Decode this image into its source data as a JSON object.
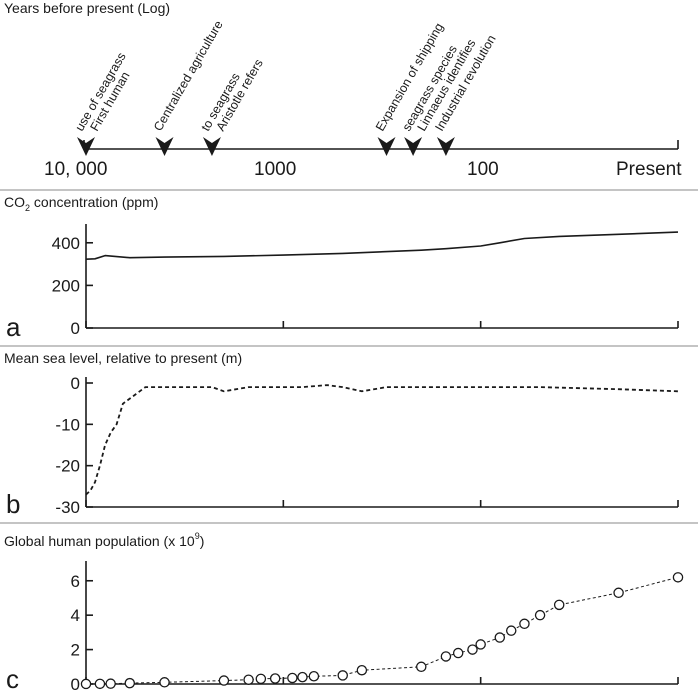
{
  "timeline": {
    "title": "Years before present (Log)",
    "tick_labels": [
      "10, 000",
      "1000",
      "100",
      "Present"
    ],
    "events": [
      {
        "lines": [
          "First human",
          "use of seagrass"
        ],
        "year": 10000
      },
      {
        "lines": [
          "Centralized agriculture"
        ],
        "year": 4000
      },
      {
        "lines": [
          "Aristotle refers",
          "to seagrass"
        ],
        "year": 2300
      },
      {
        "lines": [
          "Expansion of shipping"
        ],
        "year": 300
      },
      {
        "lines": [
          "Linnaeus identifies",
          "seagrass species"
        ],
        "year": 220
      },
      {
        "lines": [
          "Industrial revolution"
        ],
        "year": 150
      }
    ]
  },
  "chart_data": [
    {
      "type": "line",
      "panel": "a",
      "title_main": "CO",
      "title_sub": "2",
      "title_rest": " concentration (ppm)",
      "ylim": [
        0,
        460
      ],
      "yticks": [
        "0",
        "200",
        "400"
      ],
      "ytick_values": [
        0,
        200,
        400
      ],
      "x_scale": "log years before present",
      "x": [
        10000,
        9000,
        8000,
        6000,
        4000,
        2000,
        1000,
        500,
        200,
        150,
        100,
        80,
        60,
        40,
        20,
        10
      ],
      "y": [
        323,
        325,
        340,
        330,
        333,
        336,
        342,
        350,
        365,
        372,
        385,
        400,
        420,
        430,
        440,
        450
      ]
    },
    {
      "type": "line",
      "panel": "b",
      "title": "Mean sea level, relative to present (m)",
      "ylim": [
        -30,
        0
      ],
      "yticks": [
        "0",
        "-10",
        "-20",
        "-30"
      ],
      "ytick_values": [
        0,
        -10,
        -20,
        -30
      ],
      "x_scale": "log years before present",
      "x": [
        10000,
        9500,
        9000,
        8500,
        8000,
        7500,
        7000,
        6500,
        5000,
        4000,
        3000,
        2300,
        2000,
        1500,
        1000,
        800,
        600,
        500,
        400,
        300,
        200,
        100,
        50,
        20,
        10
      ],
      "y": [
        -27,
        -26,
        -24,
        -20,
        -15,
        -12,
        -10,
        -5,
        -1,
        -1,
        -1,
        -1,
        -2,
        -1,
        -1,
        -1,
        -0.5,
        -1,
        -2,
        -1,
        -1,
        -1,
        -1,
        -1.5,
        -2
      ]
    },
    {
      "type": "scatter",
      "panel": "c",
      "title_main": "Global human population (x 10",
      "title_sup": "9",
      "title_rest": ")",
      "ylim": [
        0,
        6.8
      ],
      "yticks": [
        "0",
        "2",
        "4",
        "6"
      ],
      "ytick_values": [
        0,
        2,
        4,
        6
      ],
      "x_scale": "log years before present",
      "x": [
        10000,
        8500,
        7500,
        6000,
        4000,
        2000,
        1500,
        1300,
        1100,
        900,
        800,
        700,
        500,
        400,
        200,
        150,
        130,
        110,
        100,
        80,
        70,
        60,
        50,
        40,
        20,
        10
      ],
      "y": [
        0.005,
        0.01,
        0.02,
        0.05,
        0.1,
        0.2,
        0.25,
        0.3,
        0.32,
        0.35,
        0.4,
        0.45,
        0.5,
        0.8,
        1.0,
        1.6,
        1.8,
        2.0,
        2.3,
        2.7,
        3.1,
        3.5,
        4.0,
        4.6,
        5.3,
        6.2
      ]
    }
  ]
}
